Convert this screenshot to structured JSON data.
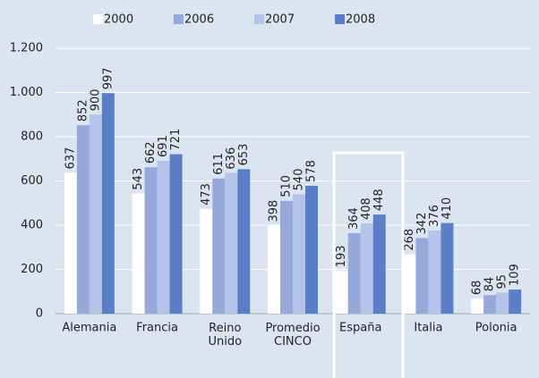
{
  "chart_data": {
    "type": "bar",
    "categories": [
      "Alemania",
      "Francia",
      "Reino Unido",
      "Promedio CINCO",
      "España",
      "Italia",
      "Polonia"
    ],
    "series": [
      {
        "name": "2000",
        "color": "#ffffff",
        "values": [
          637,
          543,
          473,
          398,
          193,
          268,
          68
        ]
      },
      {
        "name": "2006",
        "color": "#97a9db",
        "values": [
          852,
          662,
          611,
          510,
          364,
          342,
          84
        ]
      },
      {
        "name": "2007",
        "color": "#b3c3e9",
        "values": [
          900,
          691,
          636,
          540,
          408,
          376,
          95
        ]
      },
      {
        "name": "2008",
        "color": "#5b7fc7",
        "values": [
          997,
          721,
          653,
          578,
          448,
          410,
          109
        ]
      }
    ],
    "ylim": [
      0,
      1200
    ],
    "yticks": [
      0,
      200,
      400,
      600,
      800,
      {
        "value": 1000,
        "label": "1.000"
      },
      {
        "value": 1200,
        "label": "1.200"
      }
    ],
    "grid": true
  }
}
